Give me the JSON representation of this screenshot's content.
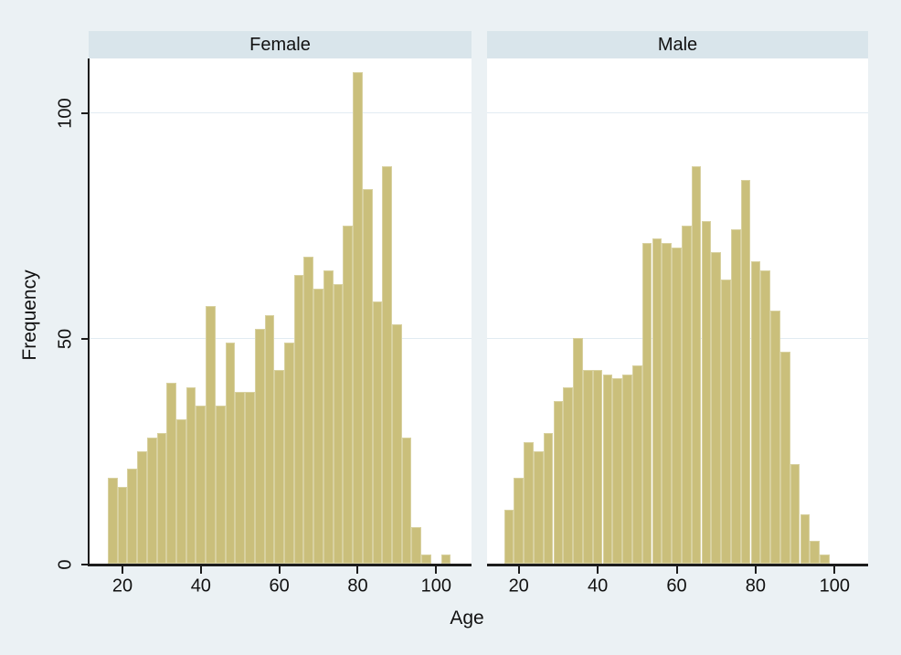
{
  "chart_data": {
    "type": "histogram",
    "title": "",
    "xlabel": "Age",
    "ylabel": "Frequency",
    "x_ticks": [
      20,
      40,
      60,
      80,
      100
    ],
    "y_ticks": [
      0,
      50,
      100
    ],
    "xlim": [
      13,
      107
    ],
    "ylim": [
      0,
      112
    ],
    "bin_start_age": 16.25,
    "bin_width_years": 2.5,
    "grid": "horizontal gridlines at y=50 and y=100",
    "legend": "none",
    "facets": [
      {
        "label": "Female",
        "frequencies": [
          19,
          17,
          21,
          25,
          28,
          29,
          40,
          32,
          39,
          35,
          57,
          35,
          49,
          38,
          38,
          52,
          55,
          43,
          49,
          64,
          68,
          61,
          65,
          62,
          75,
          109,
          83,
          58,
          88,
          53,
          28,
          8,
          2,
          0,
          2
        ]
      },
      {
        "label": "Male",
        "frequencies": [
          12,
          19,
          27,
          25,
          29,
          36,
          39,
          50,
          43,
          43,
          42,
          41,
          42,
          44,
          71,
          72,
          71,
          70,
          75,
          88,
          76,
          69,
          63,
          74,
          85,
          67,
          65,
          56,
          47,
          22,
          11,
          5,
          2
        ]
      }
    ]
  },
  "colors": {
    "page_background": "#ebf1f4",
    "plot_background": "#ffffff",
    "header_background": "#d9e5eb",
    "bar_fill": "#cabf7b",
    "bar_outline": "#d8d1a0",
    "gridline": "#e2ebf2",
    "axis_line": "#1c1c1c",
    "text": "#111111"
  }
}
